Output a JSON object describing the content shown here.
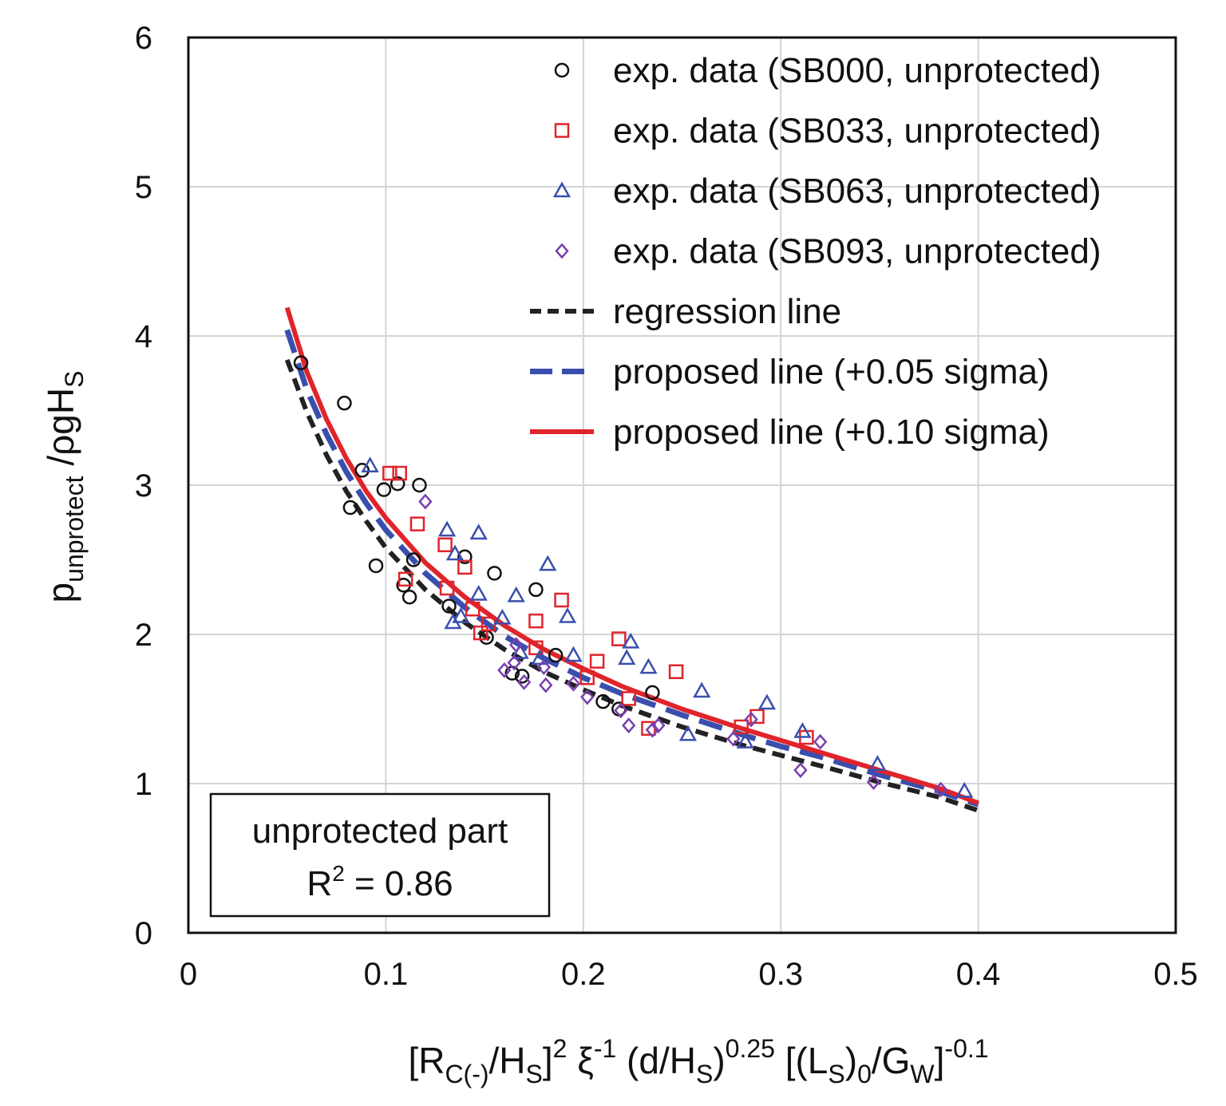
{
  "chart_data": {
    "type": "scatter",
    "xlabel": "[RC(-)/HS]2 ξ-1 (d/HS)0.25 [(LS)0/GW]-0.1",
    "xlabel_parts": {
      "p1": "[R",
      "s1": "C(-)",
      "p2": "/H",
      "s2": "S",
      "p3": "]",
      "e1": "2",
      "p4": " ξ",
      "e2": "-1",
      "p5": " (d/H",
      "s3": "S",
      "p6": ")",
      "e3": "0.25",
      "p7": " [(L",
      "s4": "S",
      "p8": ")",
      "s5": "0",
      "p9": "/G",
      "s6": "W",
      "p10": "]",
      "e4": "-0.1"
    },
    "ylabel": "punprotect /ρgHS",
    "ylabel_parts": {
      "p1": "p",
      "s1": "unprotect",
      "p2": " /ρgH",
      "s2": "S"
    },
    "xlim": [
      0,
      0.5
    ],
    "ylim": [
      0,
      6
    ],
    "xticks": [
      "0",
      "0.1",
      "0.2",
      "0.3",
      "0.4",
      "0.5"
    ],
    "yticks": [
      "0",
      "1",
      "2",
      "3",
      "4",
      "5",
      "6"
    ],
    "grid": true,
    "legend_position": "top-right",
    "series": [
      {
        "name": "exp. data (SB000, unprotected)",
        "marker": "circle",
        "color": "#111111",
        "points": [
          [
            0.057,
            3.82
          ],
          [
            0.079,
            3.55
          ],
          [
            0.088,
            3.1
          ],
          [
            0.082,
            2.85
          ],
          [
            0.099,
            2.97
          ],
          [
            0.106,
            3.01
          ],
          [
            0.117,
            3.0
          ],
          [
            0.095,
            2.46
          ],
          [
            0.109,
            2.33
          ],
          [
            0.112,
            2.25
          ],
          [
            0.114,
            2.5
          ],
          [
            0.132,
            2.19
          ],
          [
            0.14,
            2.52
          ],
          [
            0.155,
            2.41
          ],
          [
            0.151,
            1.98
          ],
          [
            0.164,
            1.74
          ],
          [
            0.169,
            1.72
          ],
          [
            0.176,
            2.3
          ],
          [
            0.186,
            1.86
          ],
          [
            0.21,
            1.55
          ],
          [
            0.218,
            1.5
          ],
          [
            0.235,
            1.61
          ]
        ]
      },
      {
        "name": "exp. data (SB033, unprotected)",
        "marker": "square",
        "color": "#e0242b",
        "points": [
          [
            0.102,
            3.08
          ],
          [
            0.107,
            3.08
          ],
          [
            0.116,
            2.74
          ],
          [
            0.11,
            2.37
          ],
          [
            0.13,
            2.6
          ],
          [
            0.131,
            2.31
          ],
          [
            0.14,
            2.45
          ],
          [
            0.144,
            2.17
          ],
          [
            0.148,
            2.01
          ],
          [
            0.152,
            2.07
          ],
          [
            0.176,
            2.09
          ],
          [
            0.176,
            1.91
          ],
          [
            0.189,
            2.23
          ],
          [
            0.202,
            1.71
          ],
          [
            0.207,
            1.82
          ],
          [
            0.218,
            1.97
          ],
          [
            0.223,
            1.57
          ],
          [
            0.233,
            1.37
          ],
          [
            0.247,
            1.75
          ],
          [
            0.28,
            1.38
          ],
          [
            0.288,
            1.45
          ],
          [
            0.313,
            1.31
          ]
        ]
      },
      {
        "name": "exp. data (SB063, unprotected)",
        "marker": "triangle",
        "color": "#3a4fad",
        "points": [
          [
            0.092,
            3.13
          ],
          [
            0.131,
            2.7
          ],
          [
            0.135,
            2.54
          ],
          [
            0.134,
            2.08
          ],
          [
            0.138,
            2.12
          ],
          [
            0.147,
            2.68
          ],
          [
            0.147,
            2.27
          ],
          [
            0.159,
            2.11
          ],
          [
            0.166,
            2.26
          ],
          [
            0.168,
            1.88
          ],
          [
            0.178,
            1.84
          ],
          [
            0.182,
            2.47
          ],
          [
            0.192,
            2.12
          ],
          [
            0.195,
            1.86
          ],
          [
            0.222,
            1.84
          ],
          [
            0.224,
            1.95
          ],
          [
            0.233,
            1.78
          ],
          [
            0.253,
            1.33
          ],
          [
            0.26,
            1.62
          ],
          [
            0.282,
            1.28
          ],
          [
            0.293,
            1.54
          ],
          [
            0.311,
            1.35
          ],
          [
            0.349,
            1.13
          ],
          [
            0.393,
            0.95
          ]
        ]
      },
      {
        "name": "exp. data (SB093, unprotected)",
        "marker": "diamond",
        "color": "#7a3fb0",
        "points": [
          [
            0.12,
            2.89
          ],
          [
            0.16,
            1.76
          ],
          [
            0.165,
            1.81
          ],
          [
            0.166,
            1.93
          ],
          [
            0.17,
            1.68
          ],
          [
            0.18,
            1.78
          ],
          [
            0.181,
            1.66
          ],
          [
            0.195,
            1.67
          ],
          [
            0.202,
            1.58
          ],
          [
            0.219,
            1.49
          ],
          [
            0.223,
            1.39
          ],
          [
            0.235,
            1.36
          ],
          [
            0.238,
            1.39
          ],
          [
            0.276,
            1.3
          ],
          [
            0.285,
            1.43
          ],
          [
            0.31,
            1.09
          ],
          [
            0.32,
            1.28
          ],
          [
            0.347,
            1.01
          ],
          [
            0.381,
            0.96
          ]
        ]
      },
      {
        "name": "regression line",
        "line": "dashed-short",
        "color": "#222222",
        "points": [
          [
            0.05,
            3.84
          ],
          [
            0.06,
            3.49
          ],
          [
            0.07,
            3.2
          ],
          [
            0.08,
            2.96
          ],
          [
            0.09,
            2.76
          ],
          [
            0.1,
            2.58
          ],
          [
            0.12,
            2.3
          ],
          [
            0.14,
            2.08
          ],
          [
            0.16,
            1.9
          ],
          [
            0.18,
            1.75
          ],
          [
            0.2,
            1.63
          ],
          [
            0.22,
            1.52
          ],
          [
            0.25,
            1.38
          ],
          [
            0.28,
            1.26
          ],
          [
            0.3,
            1.19
          ],
          [
            0.32,
            1.12
          ],
          [
            0.35,
            1.01
          ],
          [
            0.38,
            0.91
          ],
          [
            0.4,
            0.82
          ]
        ]
      },
      {
        "name": "proposed line (+0.05 sigma)",
        "line": "dashed-long",
        "color": "#3a4fad",
        "points": [
          [
            0.05,
            4.04
          ],
          [
            0.06,
            3.64
          ],
          [
            0.07,
            3.34
          ],
          [
            0.08,
            3.09
          ],
          [
            0.09,
            2.88
          ],
          [
            0.1,
            2.7
          ],
          [
            0.12,
            2.41
          ],
          [
            0.14,
            2.18
          ],
          [
            0.16,
            1.99
          ],
          [
            0.18,
            1.84
          ],
          [
            0.2,
            1.71
          ],
          [
            0.22,
            1.6
          ],
          [
            0.25,
            1.46
          ],
          [
            0.28,
            1.33
          ],
          [
            0.3,
            1.25
          ],
          [
            0.32,
            1.18
          ],
          [
            0.35,
            1.06
          ],
          [
            0.38,
            0.95
          ],
          [
            0.4,
            0.86
          ]
        ]
      },
      {
        "name": "proposed line (+0.10 sigma)",
        "line": "solid",
        "color": "#e0242b",
        "points": [
          [
            0.05,
            4.19
          ],
          [
            0.06,
            3.76
          ],
          [
            0.07,
            3.44
          ],
          [
            0.08,
            3.18
          ],
          [
            0.09,
            2.96
          ],
          [
            0.1,
            2.78
          ],
          [
            0.12,
            2.48
          ],
          [
            0.14,
            2.25
          ],
          [
            0.16,
            2.06
          ],
          [
            0.18,
            1.9
          ],
          [
            0.2,
            1.77
          ],
          [
            0.22,
            1.65
          ],
          [
            0.25,
            1.5
          ],
          [
            0.28,
            1.37
          ],
          [
            0.3,
            1.29
          ],
          [
            0.32,
            1.21
          ],
          [
            0.35,
            1.09
          ],
          [
            0.38,
            0.97
          ],
          [
            0.4,
            0.87
          ]
        ]
      }
    ]
  },
  "annotation": {
    "line1": "unprotected part",
    "r2_label": "R",
    "r2_exp": "2",
    "r2_value": " = 0.86"
  }
}
